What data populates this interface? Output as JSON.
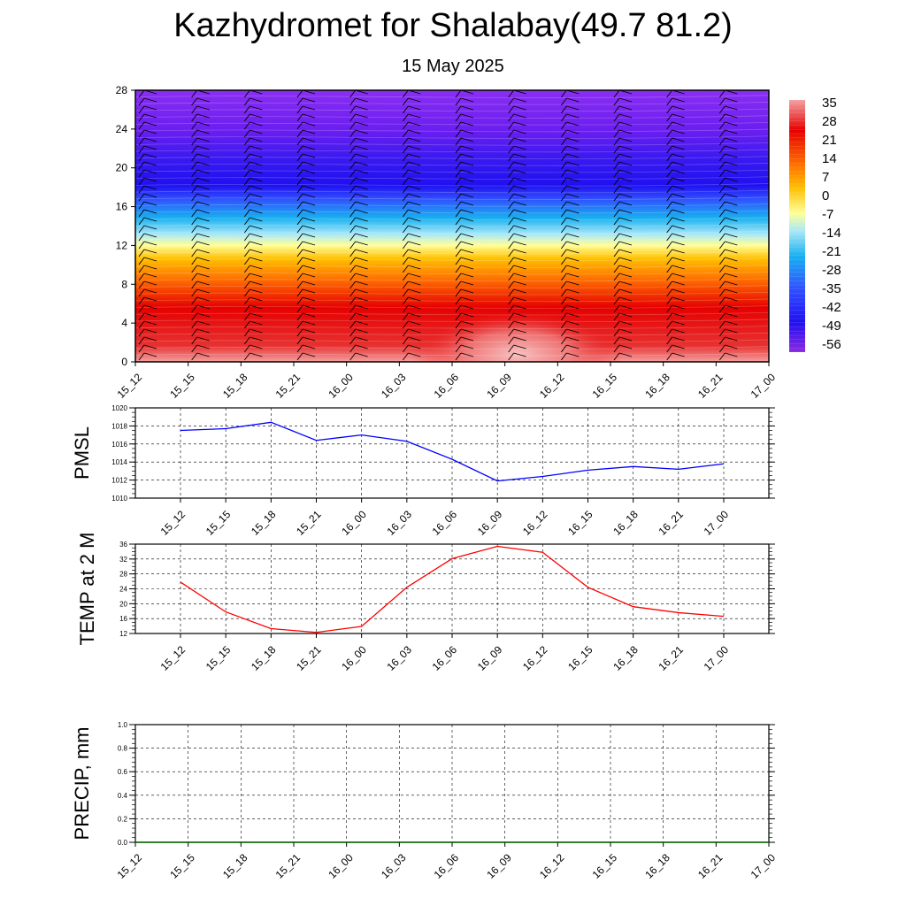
{
  "title": "Kazhydromet for Shalabay(49.7 81.2)",
  "subtitle": "15 May 2025",
  "chart_data": [
    {
      "type": "heatmap",
      "description_panel": "temperature cross-section with wind barbs",
      "x_categories": [
        "15_12",
        "15_15",
        "15_18",
        "15_21",
        "16_00",
        "16_03",
        "16_06",
        "16_09",
        "16_12",
        "16_15",
        "16_18",
        "16_21",
        "17_00"
      ],
      "y_ticks": [
        0,
        4,
        8,
        12,
        16,
        20,
        24,
        28
      ],
      "ylim": [
        0,
        28
      ],
      "colorbar_labels": [
        "35",
        "28",
        "21",
        "14",
        "7",
        "0",
        "-7",
        "-14",
        "-21",
        "-28",
        "-35",
        "-42",
        "-49",
        "-56"
      ],
      "zrange": [
        -60,
        38
      ],
      "colors": {
        "cold": "#8a2be2",
        "mid": "#ffff99",
        "warm": "#ff0000"
      }
    },
    {
      "type": "line",
      "ylabel": "PMSL",
      "x": [
        "15_12",
        "15_15",
        "15_18",
        "15_21",
        "16_00",
        "16_03",
        "16_06",
        "16_09",
        "16_12",
        "16_15",
        "16_18",
        "16_21",
        "17_00"
      ],
      "y_ticks": [
        1010,
        1012,
        1014,
        1016,
        1018,
        1020
      ],
      "ylim": [
        1010,
        1020
      ],
      "series": [
        {
          "values": [
            1017.5,
            1017.7,
            1018.4,
            1016.4,
            1017.0,
            1016.3,
            1014.3,
            1011.9,
            1012.4,
            1013.1,
            1013.5,
            1013.2,
            1013.8
          ],
          "color": "#0000ff"
        }
      ]
    },
    {
      "type": "line",
      "ylabel": "TEMP at 2 M",
      "x": [
        "15_12",
        "15_15",
        "15_18",
        "15_21",
        "16_00",
        "16_03",
        "16_06",
        "16_09",
        "16_12",
        "16_15",
        "16_18",
        "16_21",
        "17_00"
      ],
      "y_ticks": [
        12,
        16,
        20,
        24,
        28,
        32,
        36
      ],
      "ylim": [
        12,
        36
      ],
      "series": [
        {
          "values": [
            25.8,
            17.8,
            13.3,
            12.3,
            13.9,
            24.4,
            32.1,
            35.4,
            33.8,
            24.4,
            19.2,
            17.6,
            16.6
          ],
          "color": "#ff0000"
        }
      ]
    },
    {
      "type": "line",
      "ylabel": "PRECIP, mm",
      "x": [
        "15_12",
        "15_15",
        "15_18",
        "15_21",
        "16_00",
        "16_03",
        "16_06",
        "16_09",
        "16_12",
        "16_15",
        "16_18",
        "16_21",
        "17_00"
      ],
      "y_ticks": [
        "0.0",
        "0.2",
        "0.4",
        "0.6",
        "0.8",
        "1.0"
      ],
      "ylim": [
        0,
        1
      ],
      "series": [
        {
          "values": [
            0,
            0,
            0,
            0,
            0,
            0,
            0,
            0,
            0,
            0,
            0,
            0,
            0
          ],
          "color": "#006400"
        }
      ]
    }
  ]
}
